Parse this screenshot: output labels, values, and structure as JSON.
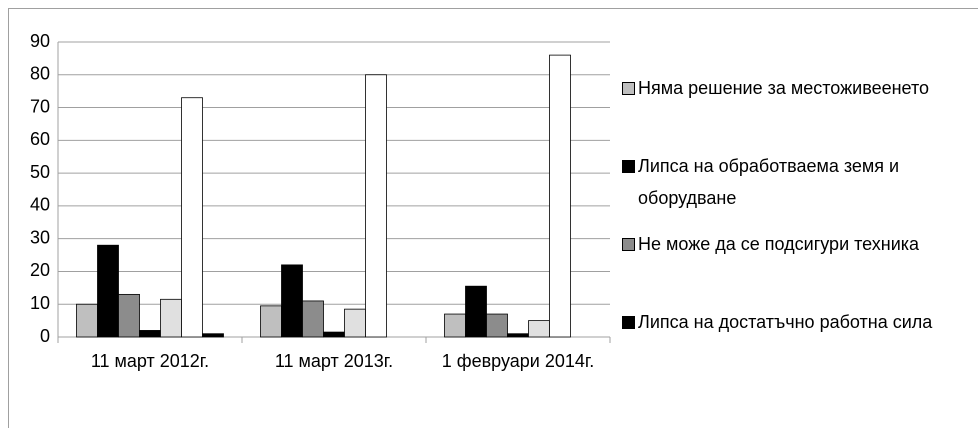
{
  "chart_data": {
    "type": "bar",
    "categories": [
      "11 март 2012г.",
      "11 март 2013г.",
      "1 февруари 2014г."
    ],
    "series": [
      {
        "name": "Няма решение за местоживеенето",
        "color": "#bfbfbf",
        "values": [
          10,
          9.5,
          7
        ]
      },
      {
        "name": "Липса на обработваема земя и оборудване",
        "color": "#000000",
        "values": [
          28,
          22,
          15.5
        ]
      },
      {
        "name": "Не може да се подсигури техника",
        "color": "#8c8c8c",
        "values": [
          13,
          11,
          7
        ]
      },
      {
        "name": "Липса на достатъчно работна сила",
        "color": "#000000",
        "values": [
          2,
          1.5,
          1
        ]
      },
      {
        "color": "#e0e0e0",
        "values": [
          11.5,
          8.5,
          5
        ]
      },
      {
        "color": "#ffffff",
        "values": [
          73,
          80,
          86
        ]
      },
      {
        "color": "#000000",
        "values": [
          1,
          0,
          0
        ]
      }
    ],
    "ylim": [
      0,
      90
    ],
    "yticks": [
      0,
      10,
      20,
      30,
      40,
      50,
      60,
      70,
      80,
      90
    ],
    "grid": true,
    "legend": "right"
  }
}
